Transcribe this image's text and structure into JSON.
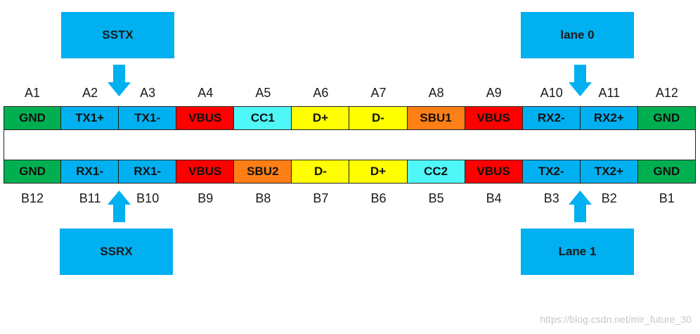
{
  "callouts": {
    "sstx": "SSTX",
    "lane0": "lane 0",
    "ssrx": "SSRX",
    "lane1": "Lane 1"
  },
  "colors": {
    "GND": "#00b050",
    "TX": "#00b0f0",
    "RX": "#00b0f0",
    "VBUS": "#ff0000",
    "CC": "#4ff7f7",
    "D": "#ffff00",
    "SBU": "#ff7f17",
    "callout": "#00b0f0"
  },
  "row_a": {
    "labels": [
      "A1",
      "A2",
      "A3",
      "A4",
      "A5",
      "A6",
      "A7",
      "A8",
      "A9",
      "A10",
      "A11",
      "A12"
    ],
    "pins": [
      {
        "name": "GND",
        "color": "#00b050"
      },
      {
        "name": "TX1+",
        "color": "#00b0f0"
      },
      {
        "name": "TX1-",
        "color": "#00b0f0"
      },
      {
        "name": "VBUS",
        "color": "#ff0000"
      },
      {
        "name": "CC1",
        "color": "#4ff7f7"
      },
      {
        "name": "D+",
        "color": "#ffff00"
      },
      {
        "name": "D-",
        "color": "#ffff00"
      },
      {
        "name": "SBU1",
        "color": "#ff7f17"
      },
      {
        "name": "VBUS",
        "color": "#ff0000"
      },
      {
        "name": "RX2-",
        "color": "#00b0f0"
      },
      {
        "name": "RX2+",
        "color": "#00b0f0"
      },
      {
        "name": "GND",
        "color": "#00b050"
      }
    ]
  },
  "row_b": {
    "labels": [
      "B12",
      "B11",
      "B10",
      "B9",
      "B8",
      "B7",
      "B6",
      "B5",
      "B4",
      "B3",
      "B2",
      "B1"
    ],
    "pins": [
      {
        "name": "GND",
        "color": "#00b050"
      },
      {
        "name": "RX1-",
        "color": "#00b0f0"
      },
      {
        "name": "RX1-",
        "color": "#00b0f0"
      },
      {
        "name": "VBUS",
        "color": "#ff0000"
      },
      {
        "name": "SBU2",
        "color": "#ff7f17"
      },
      {
        "name": "D-",
        "color": "#ffff00"
      },
      {
        "name": "D+",
        "color": "#ffff00"
      },
      {
        "name": "CC2",
        "color": "#4ff7f7"
      },
      {
        "name": "VBUS",
        "color": "#ff0000"
      },
      {
        "name": "TX2-",
        "color": "#00b0f0"
      },
      {
        "name": "TX2+",
        "color": "#00b0f0"
      },
      {
        "name": "GND",
        "color": "#00b050"
      }
    ]
  },
  "watermark": "https://blog.csdn.net/mir_future_30"
}
